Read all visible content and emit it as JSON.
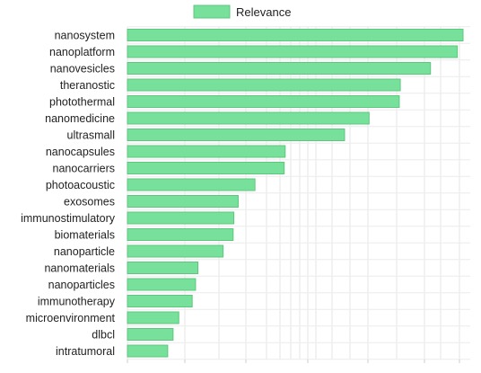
{
  "chart_data": {
    "type": "bar",
    "orientation": "horizontal",
    "legend": {
      "label": "Relevance",
      "position": "top"
    },
    "bar_color": "#77e09a",
    "bar_edge_color": "#5cc87e",
    "grid": true,
    "xlim": [
      0,
      1
    ],
    "categories": [
      "nanosystem",
      "nanoplatform",
      "nanovesicles",
      "theranostic",
      "photothermal",
      "nanomedicine",
      "ultrasmall",
      "nanocapsules",
      "nanocarriers",
      "photoacoustic",
      "exosomes",
      "immunostimulatory",
      "biomaterials",
      "nanoparticle",
      "nanomaterials",
      "nanoparticles",
      "immunotherapy",
      "microenvironment",
      "dlbcl",
      "intratumoral"
    ],
    "values": [
      1.0,
      0.983,
      0.903,
      0.813,
      0.81,
      0.72,
      0.647,
      0.47,
      0.467,
      0.38,
      0.33,
      0.317,
      0.315,
      0.285,
      0.21,
      0.203,
      0.193,
      0.153,
      0.136,
      0.12
    ]
  }
}
